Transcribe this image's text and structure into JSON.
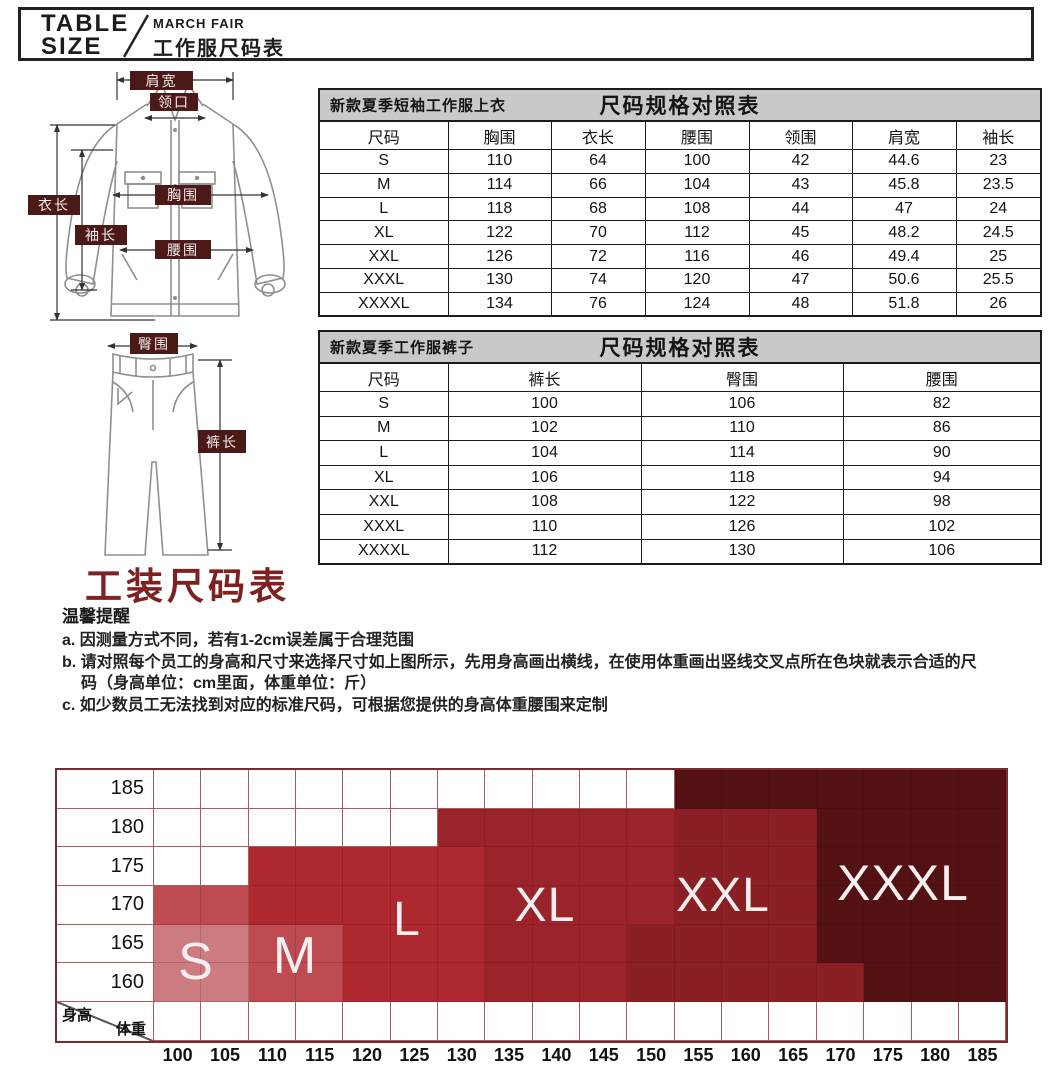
{
  "header": {
    "title_line1": "TABLE",
    "title_line2": "SIZE",
    "brand": "MARCH FAIR",
    "subtitle": "工作服尺码表"
  },
  "jacket_diagram": {
    "labels": {
      "shoulder": "肩宽",
      "collar": "领口",
      "length": "衣长",
      "sleeve": "袖长",
      "chest": "胸围",
      "waist": "腰围"
    }
  },
  "pants_diagram": {
    "labels": {
      "hip": "臀围",
      "pant_length": "裤长"
    }
  },
  "shirt_table": {
    "product": "新款夏季短袖工作服上衣",
    "title": "尺码规格对照表",
    "headers": [
      "尺码",
      "胸围",
      "衣长",
      "腰围",
      "领围",
      "肩宽",
      "袖长"
    ],
    "rows": [
      [
        "S",
        "110",
        "64",
        "100",
        "42",
        "44.6",
        "23"
      ],
      [
        "M",
        "114",
        "66",
        "104",
        "43",
        "45.8",
        "23.5"
      ],
      [
        "L",
        "118",
        "68",
        "108",
        "44",
        "47",
        "24"
      ],
      [
        "XL",
        "122",
        "70",
        "112",
        "45",
        "48.2",
        "24.5"
      ],
      [
        "XXL",
        "126",
        "72",
        "116",
        "46",
        "49.4",
        "25"
      ],
      [
        "XXXL",
        "130",
        "74",
        "120",
        "47",
        "50.6",
        "25.5"
      ],
      [
        "XXXXL",
        "134",
        "76",
        "124",
        "48",
        "51.8",
        "26"
      ]
    ]
  },
  "pants_table": {
    "product": "新款夏季工作服裤子",
    "title": "尺码规格对照表",
    "headers": [
      "尺码",
      "裤长",
      "臀围",
      "腰围"
    ],
    "rows": [
      [
        "S",
        "100",
        "106",
        "82"
      ],
      [
        "M",
        "102",
        "110",
        "86"
      ],
      [
        "L",
        "104",
        "114",
        "90"
      ],
      [
        "XL",
        "106",
        "118",
        "94"
      ],
      [
        "XXL",
        "108",
        "122",
        "98"
      ],
      [
        "XXXL",
        "110",
        "126",
        "102"
      ],
      [
        "XXXXL",
        "112",
        "130",
        "106"
      ]
    ]
  },
  "section_title": "工装尺码表",
  "notice": {
    "title": "温馨提醒",
    "items": [
      "a. 因测量方式不同，若有1-2cm误差属于合理范围",
      "b. 请对照每个员工的身高和尺寸来选择尺寸如上图所示，先用身高画出横线，在使用体重画出竖线交叉点所在色块就表示合适的尺码（身高单位：cm里面，体重单位：斤）",
      "c. 如少数员工无法找到对应的标准尺码，可根据您提供的身高体重腰围来定制"
    ]
  },
  "chart_data": {
    "type": "heatmap",
    "y_axis_label": "身高",
    "x_axis_label": "体重",
    "heights": [
      185,
      180,
      175,
      170,
      165,
      160
    ],
    "weights": [
      100,
      105,
      110,
      115,
      120,
      125,
      130,
      135,
      140,
      145,
      150,
      155,
      160,
      165,
      170,
      175,
      180,
      185
    ],
    "cells": [
      [
        "",
        "",
        "",
        "",
        "",
        "",
        "",
        "",
        "",
        "",
        "",
        "XXXL",
        "XXXL",
        "XXXL",
        "XXXL",
        "XXXL",
        "XXXL",
        "XXXL"
      ],
      [
        "",
        "",
        "",
        "",
        "",
        "",
        "XL",
        "XL",
        "XL",
        "XL",
        "XL",
        "XXL",
        "XXL",
        "XXL",
        "XXXL",
        "XXXL",
        "XXXL",
        "XXXL"
      ],
      [
        "",
        "",
        "L",
        "L",
        "L",
        "L",
        "L",
        "XL",
        "XL",
        "XL",
        "XL",
        "XXL",
        "XXL",
        "XXL",
        "XXXL",
        "XXXL",
        "XXXL",
        "XXXL"
      ],
      [
        "M",
        "M",
        "L",
        "L",
        "L",
        "L",
        "L",
        "XL",
        "XL",
        "XL",
        "XL",
        "XXL",
        "XXL",
        "XXL",
        "XXXL",
        "XXXL",
        "XXXL",
        "XXXL"
      ],
      [
        "S",
        "S",
        "M",
        "M",
        "L",
        "L",
        "L",
        "XL",
        "XL",
        "XL",
        "XXL",
        "XXL",
        "XXL",
        "XXL",
        "XXXL",
        "XXXL",
        "XXXL",
        "XXXL"
      ],
      [
        "S",
        "S",
        "M",
        "M",
        "L",
        "L",
        "L",
        "XL",
        "XL",
        "XL",
        "XXL",
        "XXL",
        "XXL",
        "XXL",
        "XXL",
        "XXXL",
        "XXXL",
        "XXXL"
      ]
    ],
    "colors": {
      "S": "#CC7B80",
      "M": "#BE4B52",
      "L": "#AD282F",
      "XL": "#9B242A",
      "XXL": "#8A2026",
      "XXXL": "#531114",
      "empty": "#FFFFFF"
    },
    "size_labels": [
      "S",
      "M",
      "L",
      "XL",
      "XXL",
      "XXXL"
    ]
  }
}
